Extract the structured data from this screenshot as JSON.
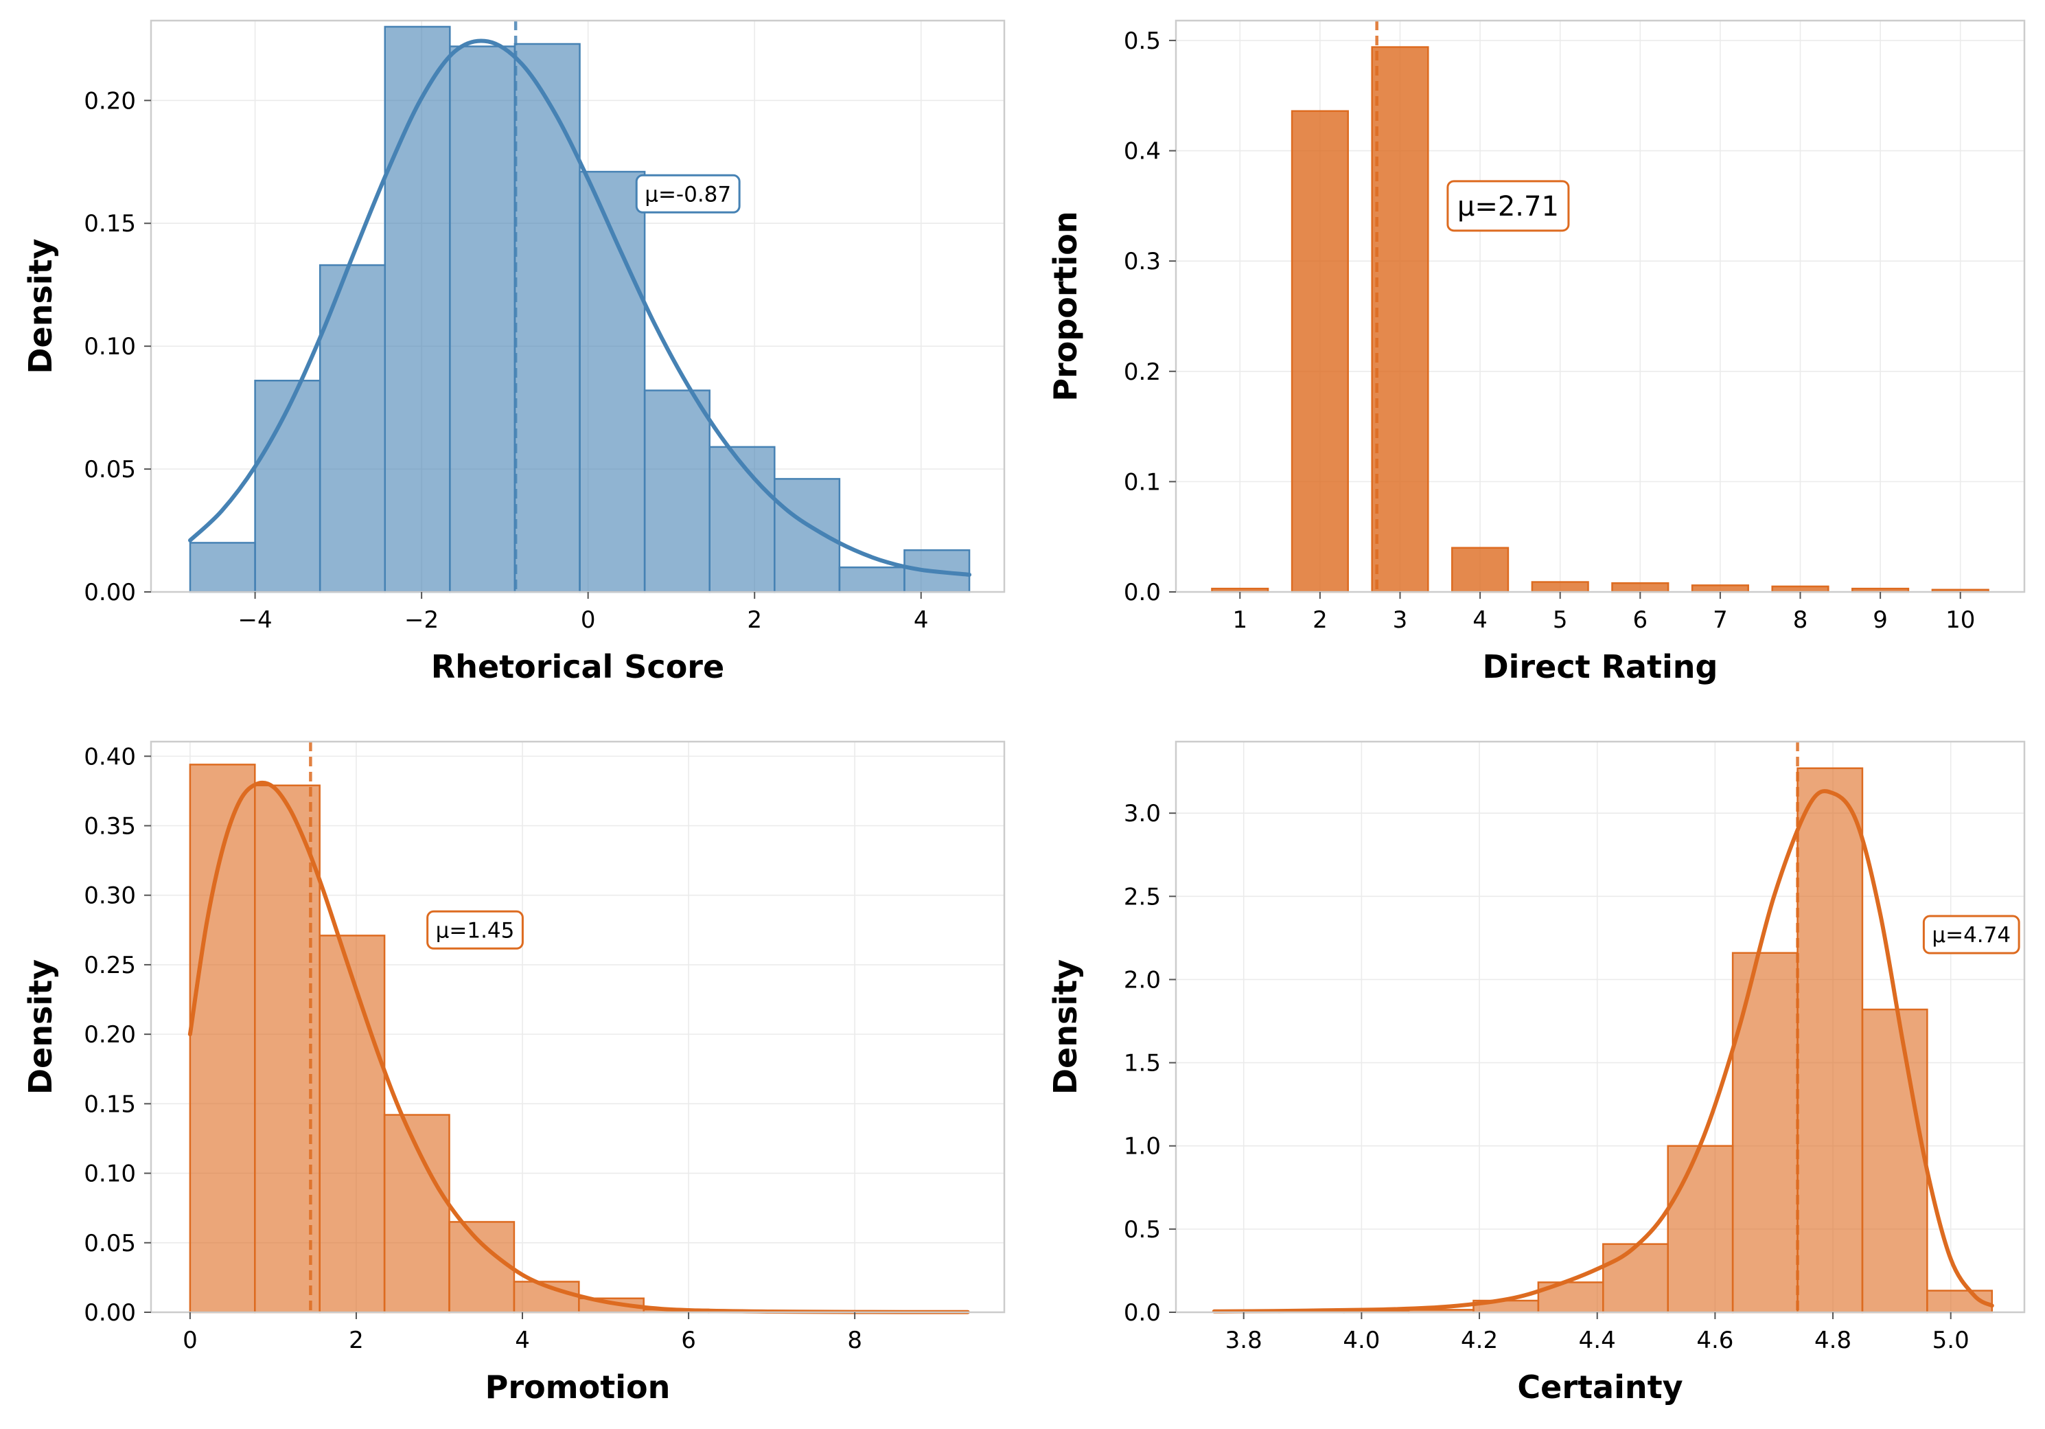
{
  "chart_data": [
    {
      "type": "histogram",
      "xlabel": "Rhetorical Score",
      "ylabel": "Density",
      "color": "#4682B4",
      "xlim": [
        -5.25,
        5.0
      ],
      "ylim": [
        0,
        0.2325
      ],
      "xticks": [
        -4,
        -2,
        0,
        2,
        4
      ],
      "xtick_labels": [
        "−4",
        "−2",
        "0",
        "2",
        "4"
      ],
      "yticks": [
        0,
        0.05,
        0.1,
        0.15,
        0.2
      ],
      "ytick_labels": [
        "0.00",
        "0.05",
        "0.10",
        "0.15",
        "0.20"
      ],
      "bins": [
        {
          "x0": -4.78,
          "x1": -4.0,
          "value": 0.02
        },
        {
          "x0": -4.0,
          "x1": -3.22,
          "value": 0.086
        },
        {
          "x0": -3.22,
          "x1": -2.44,
          "value": 0.133
        },
        {
          "x0": -2.44,
          "x1": -1.66,
          "value": 0.23
        },
        {
          "x0": -1.66,
          "x1": -0.88,
          "value": 0.222
        },
        {
          "x0": -0.88,
          "x1": -0.1,
          "value": 0.223
        },
        {
          "x0": -0.1,
          "x1": 0.68,
          "value": 0.171
        },
        {
          "x0": 0.68,
          "x1": 1.46,
          "value": 0.082
        },
        {
          "x0": 1.46,
          "x1": 2.24,
          "value": 0.059
        },
        {
          "x0": 2.24,
          "x1": 3.02,
          "value": 0.046
        },
        {
          "x0": 3.02,
          "x1": 3.8,
          "value": 0.01
        },
        {
          "x0": 3.8,
          "x1": 4.58,
          "value": 0.017
        }
      ],
      "kde": {
        "x": [
          -4.78,
          -4.4,
          -4.0,
          -3.6,
          -3.2,
          -2.8,
          -2.4,
          -2.0,
          -1.6,
          -1.2,
          -0.8,
          -0.4,
          0.0,
          0.4,
          0.8,
          1.2,
          1.6,
          2.0,
          2.4,
          2.8,
          3.2,
          3.6,
          4.0,
          4.58
        ],
        "y": [
          0.021,
          0.033,
          0.051,
          0.075,
          0.105,
          0.139,
          0.172,
          0.201,
          0.22,
          0.224,
          0.215,
          0.195,
          0.168,
          0.138,
          0.109,
          0.084,
          0.063,
          0.046,
          0.033,
          0.024,
          0.017,
          0.012,
          0.009,
          0.007
        ]
      },
      "mean": -0.87,
      "mean_label": "μ=-0.87",
      "mean_label_pos": {
        "x": 1.2,
        "y": 0.162
      }
    },
    {
      "type": "bar",
      "xlabel": "Direct Rating",
      "ylabel": "Proportion",
      "color": "#DD6B20",
      "xlim": [
        0.2,
        10.8
      ],
      "ylim": [
        0,
        0.518
      ],
      "xticks": [
        1,
        2,
        3,
        4,
        5,
        6,
        7,
        8,
        9,
        10
      ],
      "xtick_labels": [
        "1",
        "2",
        "3",
        "4",
        "5",
        "6",
        "7",
        "8",
        "9",
        "10"
      ],
      "yticks": [
        0,
        0.1,
        0.2,
        0.3,
        0.4,
        0.5
      ],
      "ytick_labels": [
        "0.0",
        "0.1",
        "0.2",
        "0.3",
        "0.4",
        "0.5"
      ],
      "categories": [
        1,
        2,
        3,
        4,
        5,
        6,
        7,
        8,
        9,
        10
      ],
      "values": [
        0.003,
        0.436,
        0.494,
        0.04,
        0.009,
        0.008,
        0.006,
        0.005,
        0.003,
        0.002
      ],
      "mean": 2.71,
      "mean_label": "μ=2.71",
      "mean_label_pos": {
        "x": 4.35,
        "y": 0.35
      }
    },
    {
      "type": "histogram",
      "xlabel": "Promotion",
      "ylabel": "Density",
      "color": "#DD6B20",
      "xlim": [
        -0.47,
        9.8
      ],
      "ylim": [
        0,
        0.4105
      ],
      "xticks": [
        0,
        2,
        4,
        6,
        8
      ],
      "xtick_labels": [
        "0",
        "2",
        "4",
        "6",
        "8"
      ],
      "yticks": [
        0,
        0.05,
        0.1,
        0.15,
        0.2,
        0.25,
        0.3,
        0.35,
        0.4
      ],
      "ytick_labels": [
        "0.00",
        "0.05",
        "0.10",
        "0.15",
        "0.20",
        "0.25",
        "0.30",
        "0.35",
        "0.40"
      ],
      "bins": [
        {
          "x0": 0.0,
          "x1": 0.78,
          "value": 0.394
        },
        {
          "x0": 0.78,
          "x1": 1.56,
          "value": 0.379
        },
        {
          "x0": 1.56,
          "x1": 2.34,
          "value": 0.271
        },
        {
          "x0": 2.34,
          "x1": 3.12,
          "value": 0.142
        },
        {
          "x0": 3.12,
          "x1": 3.9,
          "value": 0.065
        },
        {
          "x0": 3.9,
          "x1": 4.68,
          "value": 0.022
        },
        {
          "x0": 4.68,
          "x1": 5.46,
          "value": 0.01
        },
        {
          "x0": 5.46,
          "x1": 6.24,
          "value": 0.002
        },
        {
          "x0": 6.24,
          "x1": 7.02,
          "value": 0.001
        },
        {
          "x0": 7.02,
          "x1": 7.8,
          "value": 0.0005
        },
        {
          "x0": 7.8,
          "x1": 8.58,
          "value": 0.0003
        },
        {
          "x0": 8.58,
          "x1": 9.36,
          "value": 0.0002
        }
      ],
      "kde": {
        "x": [
          0.0,
          0.2,
          0.4,
          0.6,
          0.8,
          1.0,
          1.2,
          1.4,
          1.6,
          1.8,
          2.0,
          2.3,
          2.6,
          3.0,
          3.4,
          3.8,
          4.2,
          4.8,
          5.4,
          6.0,
          7.0,
          8.0,
          9.36
        ],
        "y": [
          0.2,
          0.28,
          0.335,
          0.368,
          0.38,
          0.378,
          0.362,
          0.336,
          0.304,
          0.268,
          0.232,
          0.18,
          0.135,
          0.088,
          0.056,
          0.035,
          0.021,
          0.01,
          0.004,
          0.0015,
          0.0005,
          0.0002,
          0.0001
        ]
      },
      "mean": 1.45,
      "mean_label": "μ=1.45",
      "mean_label_pos": {
        "x": 3.43,
        "y": 0.275
      }
    },
    {
      "type": "histogram",
      "xlabel": "Certainty",
      "ylabel": "Density",
      "color": "#DD6B20",
      "xlim": [
        3.685,
        5.125
      ],
      "ylim": [
        0,
        3.43
      ],
      "xticks": [
        3.8,
        4.0,
        4.2,
        4.4,
        4.6,
        4.8,
        5.0
      ],
      "xtick_labels": [
        "3.8",
        "4.0",
        "4.2",
        "4.4",
        "4.6",
        "4.8",
        "5.0"
      ],
      "yticks": [
        0,
        0.5,
        1.0,
        1.5,
        2.0,
        2.5,
        3.0
      ],
      "ytick_labels": [
        "0.0",
        "0.5",
        "1.0",
        "1.5",
        "2.0",
        "2.5",
        "3.0"
      ],
      "bins": [
        {
          "x0": 3.75,
          "x1": 3.86,
          "value": 0.005
        },
        {
          "x0": 3.86,
          "x1": 3.97,
          "value": 0.005
        },
        {
          "x0": 3.97,
          "x1": 4.08,
          "value": 0.01
        },
        {
          "x0": 4.08,
          "x1": 4.19,
          "value": 0.015
        },
        {
          "x0": 4.19,
          "x1": 4.3,
          "value": 0.07
        },
        {
          "x0": 4.3,
          "x1": 4.41,
          "value": 0.18
        },
        {
          "x0": 4.41,
          "x1": 4.52,
          "value": 0.41
        },
        {
          "x0": 4.52,
          "x1": 4.63,
          "value": 1.0
        },
        {
          "x0": 4.63,
          "x1": 4.74,
          "value": 2.16
        },
        {
          "x0": 4.74,
          "x1": 4.85,
          "value": 3.27
        },
        {
          "x0": 4.85,
          "x1": 4.96,
          "value": 1.82
        },
        {
          "x0": 4.96,
          "x1": 5.07,
          "value": 0.13
        }
      ],
      "kde": {
        "x": [
          3.75,
          3.85,
          3.95,
          4.05,
          4.15,
          4.25,
          4.32,
          4.4,
          4.46,
          4.52,
          4.58,
          4.64,
          4.7,
          4.76,
          4.8,
          4.84,
          4.88,
          4.92,
          4.96,
          5.0,
          5.04,
          5.07
        ],
        "y": [
          0.005,
          0.007,
          0.012,
          0.018,
          0.035,
          0.08,
          0.15,
          0.26,
          0.38,
          0.62,
          1.05,
          1.7,
          2.5,
          3.05,
          3.12,
          2.95,
          2.4,
          1.6,
          0.85,
          0.32,
          0.1,
          0.04
        ]
      },
      "mean": 4.74,
      "mean_label": "μ=4.74",
      "mean_label_pos": {
        "x": 5.035,
        "y": 2.27
      }
    }
  ]
}
